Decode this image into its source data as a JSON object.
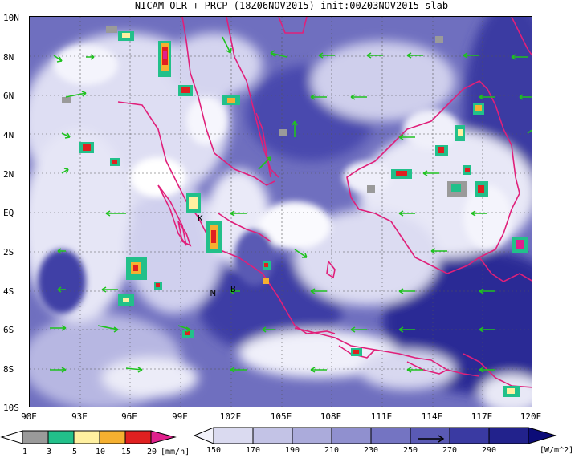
{
  "title": "NICAM OLR + PRCP (18Z06NOV2015) init:00Z03NOV2015 slab",
  "lat_labels": [
    "10N",
    "8N",
    "6N",
    "4N",
    "2N",
    "EQ",
    "2S",
    "4S",
    "6S",
    "8S",
    "10S"
  ],
  "lon_labels": [
    "90E",
    "93E",
    "96E",
    "99E",
    "102E",
    "105E",
    "108E",
    "111E",
    "114E",
    "117E",
    "120E"
  ],
  "place_labels": {
    "K": "K",
    "M": "M",
    "B": "B"
  },
  "precip_colorbar": {
    "levels": [
      "1",
      "3",
      "5",
      "10",
      "15",
      "20"
    ],
    "unit": "[mm/h]",
    "colors": [
      "#ffffff",
      "#9a9a9a",
      "#22c08a",
      "#fff0a0",
      "#f5b030",
      "#e02020",
      "#e0208c"
    ]
  },
  "olr_colorbar": {
    "levels": [
      "150",
      "170",
      "190",
      "210",
      "230",
      "250",
      "270",
      "290"
    ],
    "unit": "[W/m^2]",
    "colors": [
      "#f2f2fb",
      "#dadaf0",
      "#c3c3e6",
      "#ababdb",
      "#9090cf",
      "#7474c2",
      "#5a5ab4",
      "#3a3aa2",
      "#22228c",
      "#0c0c78"
    ]
  },
  "legend": {
    "wind_vector_color": "#1fc21f",
    "coast_color": "#e0207a"
  }
}
